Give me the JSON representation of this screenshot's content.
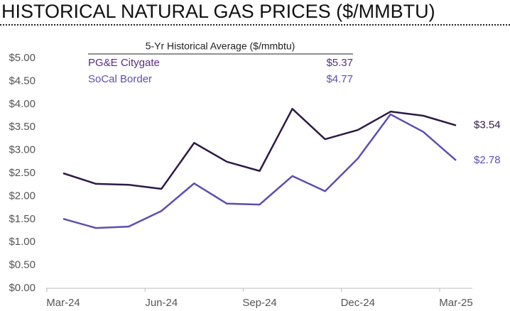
{
  "chart_data": {
    "type": "line",
    "title": "HISTORICAL NATURAL GAS PRICES ($/MMBTU)",
    "legend_title": "5-Yr Historical Average  ($/mmbtu)",
    "categories": [
      "Mar-24",
      null,
      null,
      "Jun-24",
      null,
      null,
      "Sep-24",
      null,
      null,
      "Dec-24",
      null,
      null,
      "Mar-25"
    ],
    "series": [
      {
        "name": "PG&E Citygate",
        "color": "#2e1a47",
        "legend_color": "#5a2d82",
        "average": "$5.37",
        "values": [
          2.5,
          2.27,
          2.25,
          2.16,
          3.16,
          2.75,
          2.55,
          3.9,
          3.24,
          3.44,
          3.84,
          3.75,
          3.54
        ],
        "value_labels": [
          null,
          null,
          null,
          null,
          null,
          null,
          null,
          null,
          null,
          null,
          null,
          null,
          "$3.54"
        ]
      },
      {
        "name": "SoCal Border",
        "color": "#5b4fb0",
        "legend_color": "#5b4fb0",
        "average": "$4.77",
        "values": [
          1.51,
          1.31,
          1.34,
          1.68,
          2.28,
          1.84,
          1.82,
          2.44,
          2.11,
          2.82,
          3.78,
          3.4,
          2.78
        ],
        "value_labels": [
          null,
          null,
          null,
          null,
          null,
          null,
          null,
          null,
          null,
          null,
          null,
          null,
          "$2.78"
        ]
      }
    ],
    "ylim": [
      0,
      5
    ],
    "yticks": [
      {
        "value": 0,
        "label": "$0.00"
      },
      {
        "value": 0.5,
        "label": "$0.50"
      },
      {
        "value": 1,
        "label": "$1.00"
      },
      {
        "value": 1.5,
        "label": "$1.50"
      },
      {
        "value": 2,
        "label": "$2.00"
      },
      {
        "value": 2.5,
        "label": "$2.50"
      },
      {
        "value": 3,
        "label": "$3.00"
      },
      {
        "value": 3.5,
        "label": "$3.50"
      },
      {
        "value": 4,
        "label": "$4.00"
      },
      {
        "value": 4.5,
        "label": "$4.50"
      },
      {
        "value": 5,
        "label": "$5.00"
      }
    ],
    "grid": false
  }
}
